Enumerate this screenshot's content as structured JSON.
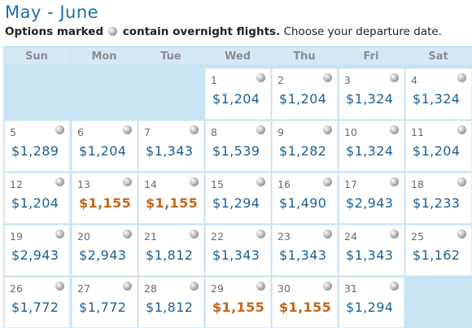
{
  "title": "May - June",
  "subtitle": {
    "bold_part1": "Options marked",
    "icon": "moon-icon",
    "bold_part2": "contain overnight flights.",
    "normal": " Choose your departure date."
  },
  "days_of_week": [
    "Sun",
    "Mon",
    "Tue",
    "Wed",
    "Thu",
    "Fri",
    "Sat"
  ],
  "colors": {
    "price": "#1e5f91",
    "low_price": "#c4661c",
    "background": "#c8e3f2"
  },
  "weeks": [
    [
      null,
      null,
      null,
      {
        "day": "1",
        "price": "$1,204",
        "low": false
      },
      {
        "day": "2",
        "price": "$1,204",
        "low": false
      },
      {
        "day": "3",
        "price": "$1,324",
        "low": false
      },
      {
        "day": "4",
        "price": "$1,324",
        "low": false
      }
    ],
    [
      {
        "day": "5",
        "price": "$1,289",
        "low": false
      },
      {
        "day": "6",
        "price": "$1,204",
        "low": false
      },
      {
        "day": "7",
        "price": "$1,343",
        "low": false
      },
      {
        "day": "8",
        "price": "$1,539",
        "low": false
      },
      {
        "day": "9",
        "price": "$1,282",
        "low": false
      },
      {
        "day": "10",
        "price": "$1,324",
        "low": false
      },
      {
        "day": "11",
        "price": "$1,204",
        "low": false
      }
    ],
    [
      {
        "day": "12",
        "price": "$1,204",
        "low": false
      },
      {
        "day": "13",
        "price": "$1,155",
        "low": true
      },
      {
        "day": "14",
        "price": "$1,155",
        "low": true
      },
      {
        "day": "15",
        "price": "$1,294",
        "low": false
      },
      {
        "day": "16",
        "price": "$1,490",
        "low": false
      },
      {
        "day": "17",
        "price": "$2,943",
        "low": false
      },
      {
        "day": "18",
        "price": "$1,233",
        "low": false
      }
    ],
    [
      {
        "day": "19",
        "price": "$2,943",
        "low": false
      },
      {
        "day": "20",
        "price": "$2,943",
        "low": false
      },
      {
        "day": "21",
        "price": "$1,812",
        "low": false
      },
      {
        "day": "22",
        "price": "$1,343",
        "low": false
      },
      {
        "day": "23",
        "price": "$1,343",
        "low": false
      },
      {
        "day": "24",
        "price": "$1,343",
        "low": false
      },
      {
        "day": "25",
        "price": "$1,162",
        "low": false
      }
    ],
    [
      {
        "day": "26",
        "price": "$1,772",
        "low": false
      },
      {
        "day": "27",
        "price": "$1,772",
        "low": false
      },
      {
        "day": "28",
        "price": "$1,812",
        "low": false
      },
      {
        "day": "29",
        "price": "$1,155",
        "low": true
      },
      {
        "day": "30",
        "price": "$1,155",
        "low": true
      },
      {
        "day": "31",
        "price": "$1,294",
        "low": false
      },
      null
    ]
  ]
}
